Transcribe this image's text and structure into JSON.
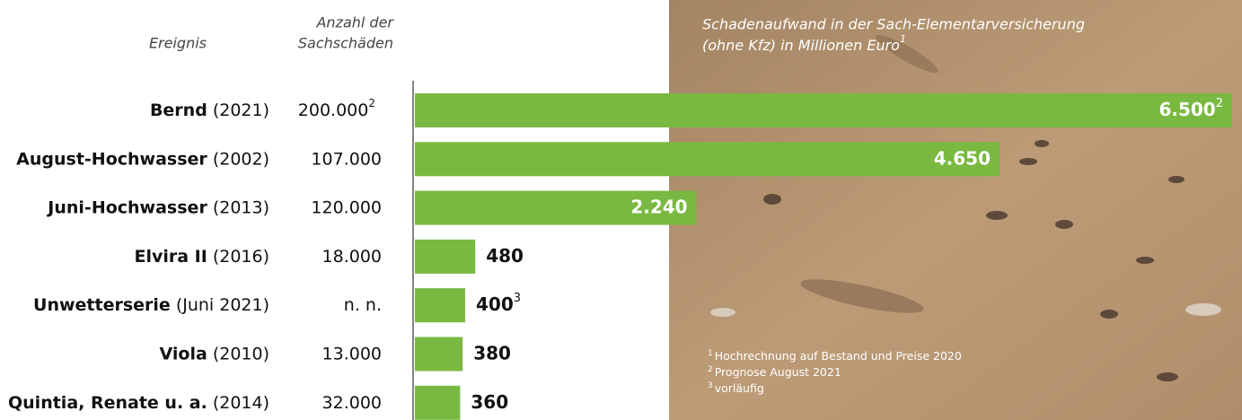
{
  "chart_data": {
    "type": "bar",
    "orientation": "horizontal",
    "title_lines": [
      "Schadenaufwand in der Sach-Elementarversicherung",
      "(ohne Kfz) in Millionen Euro"
    ],
    "title_note": "1",
    "event_header": "Ereignis",
    "count_header": [
      "Anzahl der",
      "Sachschäden"
    ],
    "categories": [
      "Bernd",
      "August-Hochwasser",
      "Juni-Hochwasser",
      "Elvira II",
      "Unwetterserie",
      "Viola",
      "Quintia, Renate u. a."
    ],
    "years": [
      "(2021)",
      "(2002)",
      "(2013)",
      "(2016)",
      "(Juni 2021)",
      "(2010)",
      "(2014)"
    ],
    "counts": [
      "200.000",
      "107.000",
      "120.000",
      "18.000",
      "n. n.",
      "13.000",
      "32.000"
    ],
    "count_notes": [
      "2",
      null,
      null,
      null,
      null,
      null,
      null
    ],
    "values": [
      6500,
      4650,
      2240,
      480,
      400,
      380,
      360
    ],
    "value_labels": [
      "6.500",
      "4.650",
      "2.240",
      "480",
      "400",
      "380",
      "360"
    ],
    "value_notes": [
      "2",
      null,
      null,
      null,
      "3",
      null,
      null
    ],
    "color": "#7ab941",
    "footnotes": [
      {
        "mark": "1",
        "text": "Hochrechnung auf Bestand und Preise 2020"
      },
      {
        "mark": "2",
        "text": "Prognose August 2021"
      },
      {
        "mark": "3",
        "text": "vorläufig"
      }
    ]
  }
}
